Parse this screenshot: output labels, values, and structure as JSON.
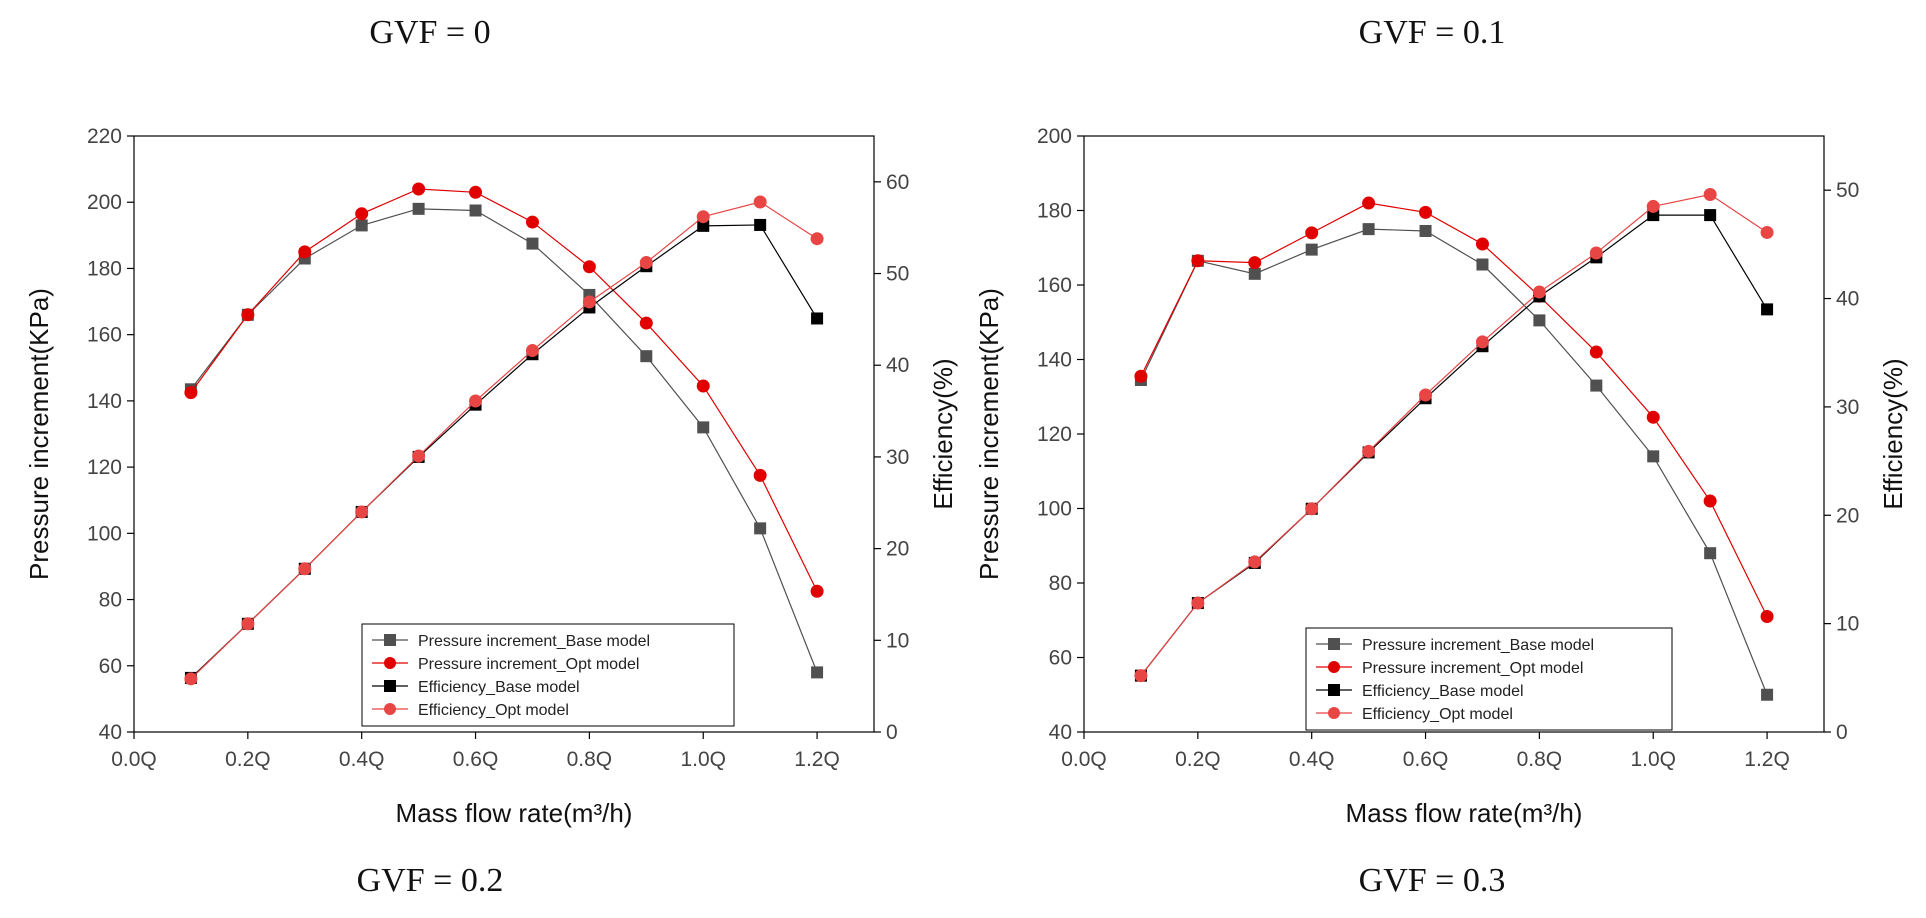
{
  "captions": {
    "top_left": "GVF = 0",
    "top_right": "GVF = 0.1",
    "bottom_left": "GVF = 0.2",
    "bottom_right": "GVF = 0.3"
  },
  "colors": {
    "base_pressure": "#505050",
    "opt_pressure": "#e00000",
    "base_efficiency": "#000000",
    "opt_efficiency": "#e84545"
  },
  "chart_data": [
    {
      "type": "line",
      "xlabel": "Mass flow rate(m³/h)",
      "ylabel": "Pressure increment(KPa)",
      "y2label": "Efficiency(%)",
      "x_ticks": [
        "0.0Q",
        "0.2Q",
        "0.4Q",
        "0.6Q",
        "0.8Q",
        "1.0Q",
        "1.2Q"
      ],
      "xlim": [
        0.0,
        1.3
      ],
      "ylim": [
        40,
        220
      ],
      "y_ticks": [
        40,
        60,
        80,
        100,
        120,
        140,
        160,
        180,
        200,
        220
      ],
      "y2lim": [
        0,
        65
      ],
      "y2_ticks": [
        0,
        10,
        20,
        30,
        40,
        50,
        60
      ],
      "legend_position": "bottom-center",
      "x": [
        0.1,
        0.2,
        0.3,
        0.4,
        0.5,
        0.6,
        0.7,
        0.8,
        0.9,
        1.0,
        1.1,
        1.2
      ],
      "series": [
        {
          "name": "Pressure increment_Base model",
          "axis": "left",
          "marker": "square",
          "values": [
            143.5,
            166,
            183,
            193,
            198,
            197.5,
            187.5,
            172,
            153.5,
            132,
            101.5,
            58
          ]
        },
        {
          "name": "Pressure increment_Opt model",
          "axis": "left",
          "marker": "circle",
          "values": [
            142.5,
            166,
            185,
            196.5,
            204,
            203,
            194,
            180.5,
            163.5,
            144.5,
            117.5,
            82.5
          ]
        },
        {
          "name": "Efficiency_Base model",
          "axis": "right",
          "marker": "square",
          "values": [
            5.9,
            11.8,
            17.8,
            24,
            30,
            35.7,
            41.2,
            46.3,
            50.8,
            55.2,
            55.3,
            45.1
          ]
        },
        {
          "name": "Efficiency_Opt model",
          "axis": "right",
          "marker": "circle",
          "values": [
            5.8,
            11.8,
            17.8,
            24,
            30.1,
            36.1,
            41.6,
            46.9,
            51.2,
            56.2,
            57.8,
            53.8
          ]
        }
      ]
    },
    {
      "type": "line",
      "xlabel": "Mass flow rate(m³/h)",
      "ylabel": "Pressure increment(KPa)",
      "y2label": "Efficiency(%)",
      "x_ticks": [
        "0.0Q",
        "0.2Q",
        "0.4Q",
        "0.6Q",
        "0.8Q",
        "1.0Q",
        "1.2Q"
      ],
      "xlim": [
        0.0,
        1.3
      ],
      "ylim": [
        40,
        200
      ],
      "y_ticks": [
        40,
        60,
        80,
        100,
        120,
        140,
        160,
        180,
        200
      ],
      "y2lim": [
        0,
        55
      ],
      "y2_ticks": [
        0,
        10,
        20,
        30,
        40,
        50
      ],
      "legend_position": "bottom-center",
      "x": [
        0.1,
        0.2,
        0.3,
        0.4,
        0.5,
        0.6,
        0.7,
        0.8,
        0.9,
        1.0,
        1.1,
        1.2
      ],
      "series": [
        {
          "name": "Pressure increment_Base model",
          "axis": "left",
          "marker": "square",
          "values": [
            134.5,
            166.5,
            163,
            169.5,
            175,
            174.5,
            165.5,
            150.5,
            133,
            114,
            88,
            50
          ]
        },
        {
          "name": "Pressure increment_Opt model",
          "axis": "left",
          "marker": "circle",
          "values": [
            135.5,
            166.5,
            166,
            174,
            182,
            179.5,
            171,
            157,
            142,
            124.5,
            102,
            71
          ]
        },
        {
          "name": "Efficiency_Base model",
          "axis": "right",
          "marker": "square",
          "values": [
            5.2,
            11.9,
            15.6,
            20.6,
            25.8,
            30.8,
            35.6,
            40.2,
            43.8,
            47.7,
            47.7,
            39
          ]
        },
        {
          "name": "Efficiency_Opt model",
          "axis": "right",
          "marker": "circle",
          "values": [
            5.2,
            11.9,
            15.7,
            20.6,
            25.9,
            31.1,
            36,
            40.6,
            44.2,
            48.5,
            49.6,
            46.1
          ]
        }
      ]
    }
  ]
}
